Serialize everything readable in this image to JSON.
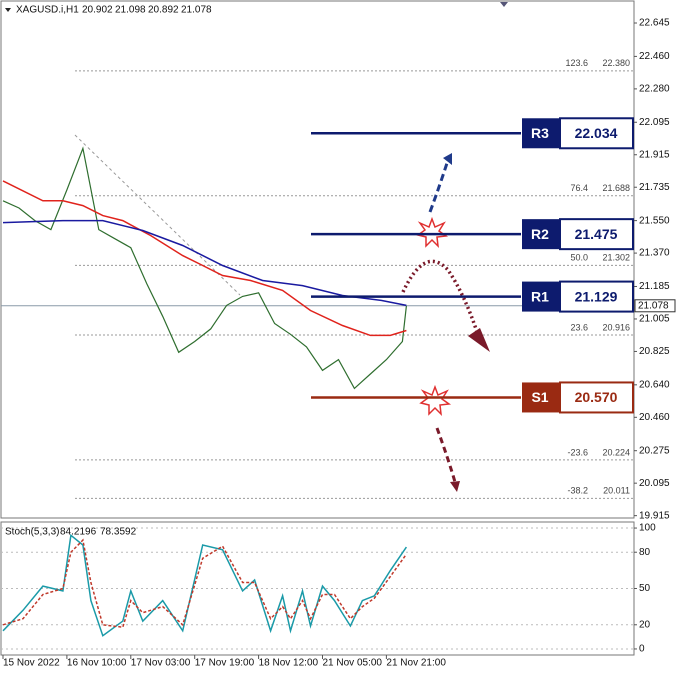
{
  "chart_data": [
    {
      "type": "line",
      "title": "XAGUSD.i,H1",
      "ohlc": [
        20.902,
        21.098,
        20.892,
        21.078
      ],
      "ylim": [
        19.902,
        22.767
      ],
      "yticks": [
        22.645,
        {
          "value": 22.46,
          "label": "22.460"
        },
        {
          "value": 22.28,
          "label": "22.280"
        },
        22.095,
        21.915,
        21.735,
        {
          "value": 21.55,
          "label": "21.550"
        },
        {
          "value": 21.37,
          "label": "21.370"
        },
        21.185,
        21.005,
        20.825,
        {
          "value": 20.64,
          "label": "20.640"
        },
        {
          "value": 20.46,
          "label": "20.460"
        },
        20.275,
        20.095,
        19.915
      ],
      "xlim": [
        -0.5,
        158
      ],
      "xticks": [
        {
          "value": 0,
          "label": "15 Nov 2022"
        },
        {
          "value": 16,
          "label": "16 Nov 10:00"
        },
        {
          "value": 32,
          "label": "17 Nov 03:00"
        },
        {
          "value": 48,
          "label": "17 Nov 19:00"
        },
        {
          "value": 64,
          "label": "18 Nov 12:00"
        },
        {
          "value": 80,
          "label": "21 Nov 05:00"
        },
        {
          "value": 96,
          "label": "21 Nov 21:00"
        }
      ],
      "last_price": 21.078,
      "series": [
        {
          "color": "#2f6e2f",
          "x": [
            0,
            4,
            8,
            12,
            16,
            20,
            24,
            28,
            32,
            36,
            40,
            44,
            48,
            52,
            56,
            60,
            64,
            68,
            72,
            76,
            80,
            84,
            88,
            92,
            96,
            100,
            101
          ],
          "values": [
            21.66,
            21.62,
            21.55,
            21.5,
            21.72,
            21.95,
            21.5,
            21.45,
            21.4,
            21.2,
            21.02,
            20.82,
            20.88,
            20.95,
            21.08,
            21.13,
            21.15,
            20.98,
            20.92,
            20.85,
            20.72,
            20.78,
            20.62,
            20.7,
            20.78,
            20.88,
            21.078
          ]
        },
        {
          "color": "#e0231c",
          "x": [
            0,
            10,
            15,
            20,
            25,
            30,
            37,
            45,
            50,
            55,
            62,
            70,
            77,
            85,
            92,
            97,
            101
          ],
          "values": [
            21.77,
            21.66,
            21.66,
            21.633,
            21.578,
            21.55,
            21.467,
            21.356,
            21.301,
            21.246,
            21.218,
            21.163,
            21.052,
            20.969,
            20.914,
            20.914,
            20.941
          ]
        },
        {
          "color": "#1a1aa0",
          "x": [
            0,
            15,
            25,
            35,
            45,
            55,
            65,
            75,
            85,
            95,
            101
          ],
          "values": [
            21.539,
            21.55,
            21.55,
            21.495,
            21.412,
            21.301,
            21.218,
            21.19,
            21.135,
            21.107,
            21.08
          ]
        }
      ],
      "fib_levels": [
        {
          "ratio": "123.6",
          "price": 22.38,
          "price_label": "22.380"
        },
        {
          "ratio": "76.4",
          "price": 21.688
        },
        {
          "ratio": "50.0",
          "price": 21.302
        },
        {
          "ratio": "23.6",
          "price": 20.916
        },
        {
          "ratio": "-23.6",
          "price": 20.224
        },
        {
          "ratio": "-38.2",
          "price": 20.011
        }
      ],
      "levels": [
        {
          "label": "R3",
          "value": 22.034,
          "color": "#0d1b6e"
        },
        {
          "label": "R2",
          "value": 21.475,
          "color": "#0d1b6e"
        },
        {
          "label": "R1",
          "value": 21.129,
          "color": "#0d1b6e"
        },
        {
          "label": "S1",
          "value": 20.57,
          "value_label": "20.570",
          "color": "#9a2a12"
        }
      ]
    },
    {
      "type": "line",
      "title": "Stoch(5,3,3)",
      "readings": [
        84.2196,
        78.3592
      ],
      "ylim": [
        -5,
        105
      ],
      "yticks": [
        100,
        80,
        50,
        20,
        0
      ],
      "grid": true,
      "xlim": [
        -0.5,
        158
      ],
      "series": [
        {
          "color": "#1a9aa8",
          "x": [
            0,
            5,
            10,
            15,
            17,
            20,
            22,
            25,
            30,
            32,
            35,
            40,
            45,
            50,
            55,
            60,
            63,
            67,
            70,
            72,
            75,
            77,
            80,
            83,
            87,
            90,
            93,
            97,
            101
          ],
          "values": [
            15,
            32,
            52,
            48,
            94,
            86,
            40,
            11,
            23,
            48,
            23,
            40,
            15,
            86,
            82,
            48,
            57,
            15,
            44,
            15,
            48,
            19,
            52,
            40,
            19,
            40,
            44,
            65,
            84.2196
          ]
        },
        {
          "color": "#c0392b",
          "dash": true,
          "x": [
            0,
            5,
            10,
            15,
            17,
            20,
            22,
            25,
            30,
            32,
            35,
            40,
            45,
            50,
            55,
            60,
            63,
            67,
            70,
            72,
            75,
            77,
            80,
            83,
            87,
            90,
            93,
            97,
            101
          ],
          "values": [
            20,
            25,
            45,
            50,
            80,
            90,
            55,
            20,
            18,
            40,
            30,
            35,
            20,
            75,
            85,
            55,
            55,
            25,
            35,
            25,
            40,
            25,
            45,
            45,
            25,
            35,
            42,
            60,
            78.3592
          ]
        }
      ]
    }
  ]
}
